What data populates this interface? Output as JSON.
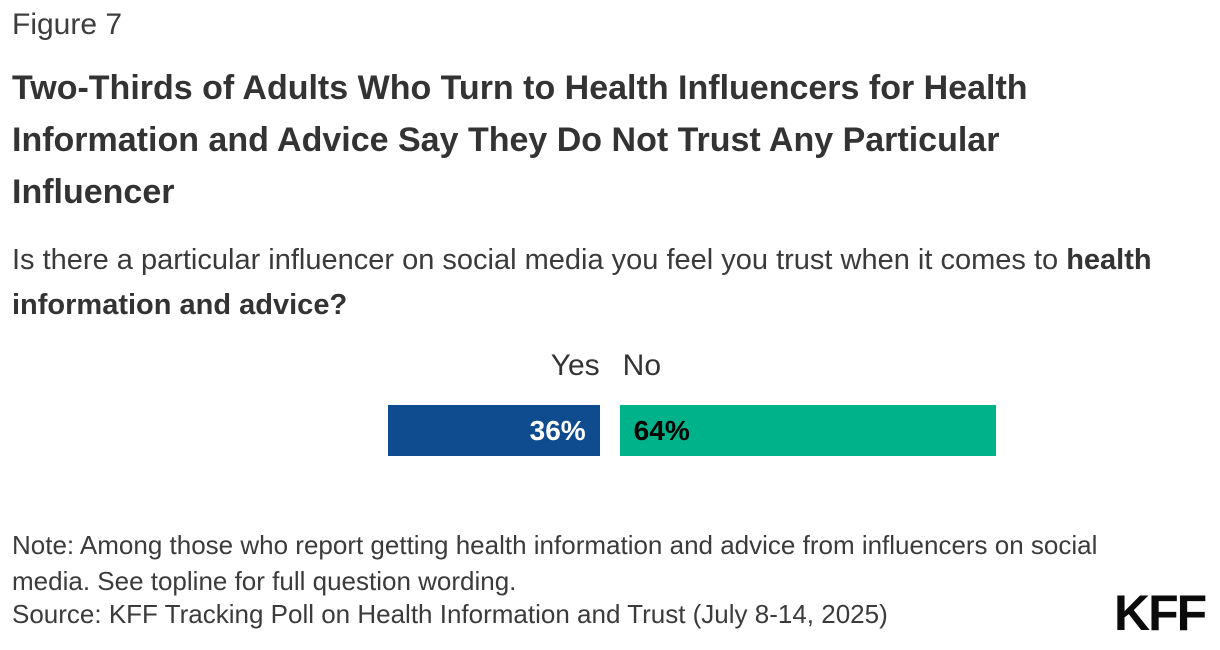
{
  "figure_label": "Figure 7",
  "title": "Two-Thirds of Adults Who Turn to Health Influencers for Health Information and Advice Say They Do Not Trust Any Particular Influencer",
  "subtitle": {
    "normal": "Is there a particular influencer on social media you feel you trust when it comes to ",
    "bold": "health information and advice?"
  },
  "chart_data": {
    "type": "bar",
    "orientation": "horizontal",
    "question": "Is there a particular influencer on social media you feel you trust when it comes to health information and advice?",
    "categories": [
      "Yes",
      "No"
    ],
    "values": [
      36,
      64
    ],
    "value_labels": [
      "36%",
      "64%"
    ],
    "unit": "percent",
    "bar_colors": [
      "#0F4C8F",
      "#00B289"
    ],
    "value_text_colors": [
      "#FFFFFF",
      "#000000"
    ],
    "axis": "none",
    "legend_position": "labels-above-bars"
  },
  "note": "Note: Among those who report getting health information and advice from influencers on social media. See topline for full question wording.",
  "source": "Source: KFF Tracking Poll on Health Information and Trust (July 8-14, 2025)",
  "logo_text": "KFF",
  "colors": {
    "background": "#FFFFFF",
    "text": "#333333",
    "yes_bar": "#0F4C8F",
    "no_bar": "#00B289"
  }
}
